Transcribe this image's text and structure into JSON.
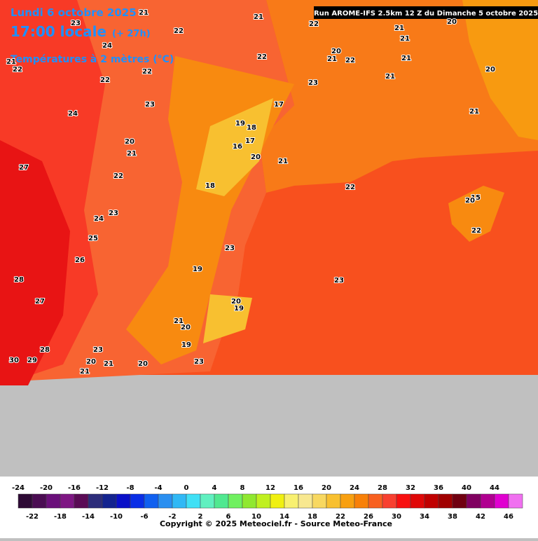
{
  "header": {
    "date": "Lundi 6 octobre 2025",
    "time": "17:00 locale",
    "lead": "(+ 27h)",
    "variable": "Températures à 2 mètres (°C)",
    "run": "Run AROME-IFS 2.5km 12 Z du Dimanche 5 octobre 2025"
  },
  "map_labels": [
    "21",
    "23",
    "21",
    "22",
    "21",
    "20",
    "22",
    "24",
    "20",
    "21",
    "21",
    "22",
    "22",
    "21",
    "22",
    "21",
    "20",
    "22",
    "22",
    "23",
    "21",
    "23",
    "17",
    "24",
    "21",
    "19",
    "18",
    "20",
    "17",
    "16",
    "21",
    "20",
    "21",
    "27",
    "22",
    "18",
    "22",
    "15",
    "20",
    "23",
    "24",
    "25",
    "22",
    "23",
    "26",
    "19",
    "28",
    "23",
    "27",
    "20",
    "19",
    "21",
    "20",
    "28",
    "23",
    "19",
    "30",
    "29",
    "20",
    "21",
    "20",
    "23",
    "21"
  ],
  "legend": {
    "ticks": [
      -24,
      -22,
      -20,
      -18,
      -16,
      -14,
      -12,
      -10,
      -8,
      -6,
      -4,
      -2,
      0,
      2,
      4,
      6,
      8,
      10,
      12,
      14,
      16,
      18,
      20,
      22,
      24,
      26,
      28,
      30,
      32,
      34,
      36,
      38,
      40,
      42,
      44,
      46
    ],
    "colors": [
      "#2e0a35",
      "#4a0c52",
      "#6a0f7a",
      "#7e1683",
      "#5a0b55",
      "#2c2c7a",
      "#13238f",
      "#0a10c8",
      "#0a2ee6",
      "#1060f0",
      "#2a8ff0",
      "#30b8f5",
      "#40e0f5",
      "#60f0c0",
      "#50e890",
      "#70f060",
      "#90e830",
      "#c0f020",
      "#f0f010",
      "#f8f070",
      "#f8e890",
      "#f8d860",
      "#f8c030",
      "#f8a010",
      "#f88008",
      "#f86020",
      "#f84030",
      "#f81010",
      "#e00808",
      "#c00000",
      "#a00000",
      "#700010",
      "#800060",
      "#b00090",
      "#e000d0",
      "#f070f0"
    ]
  },
  "copyright": "Copyright © 2025 Meteociel.fr - Source Meteo-France"
}
